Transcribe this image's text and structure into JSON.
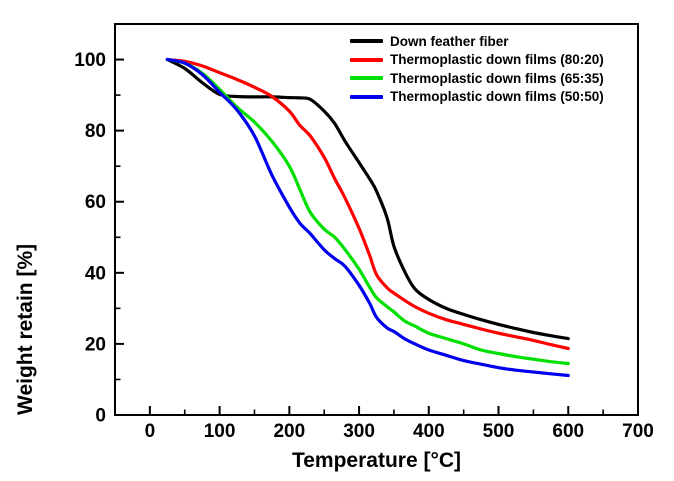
{
  "figure": {
    "background": "#ffffff",
    "frame_color": "#000000"
  },
  "chart_data": {
    "type": "line",
    "title": "",
    "xlabel": "Temperature [°C]",
    "ylabel": "Weight retain [%]",
    "xlim": [
      -50,
      700
    ],
    "ylim": [
      0,
      110
    ],
    "x_major_ticks": [
      0,
      100,
      200,
      300,
      400,
      500,
      600,
      700
    ],
    "x_minor_ticks": [
      50,
      150,
      250,
      350,
      450,
      550,
      650
    ],
    "y_major_ticks": [
      0,
      20,
      40,
      60,
      80,
      100
    ],
    "y_minor_ticks": [
      10,
      30,
      50,
      70,
      90
    ],
    "grid": false,
    "legend_position": "top-right-inside",
    "x": [
      25,
      50,
      75,
      100,
      125,
      150,
      175,
      200,
      215,
      230,
      250,
      265,
      280,
      300,
      315,
      325,
      340,
      350,
      365,
      380,
      400,
      425,
      450,
      475,
      500,
      525,
      550,
      575,
      600
    ],
    "series": [
      {
        "name": "Down feather fiber",
        "color": "#000000",
        "values": [
          100,
          97.5,
          93.5,
          90.2,
          89.6,
          89.5,
          89.5,
          89.3,
          89.2,
          88.8,
          85.5,
          82,
          77,
          71,
          66.5,
          63,
          55.5,
          47.5,
          40.5,
          35.5,
          32.5,
          30,
          28.3,
          26.8,
          25.5,
          24.3,
          23.2,
          22.3,
          21.5
        ]
      },
      {
        "name": "Thermoplastic down films (80:20)",
        "color": "#fe0000",
        "values": [
          100,
          99.5,
          98.2,
          96.3,
          94.4,
          92.2,
          89.6,
          85.5,
          81.5,
          78.5,
          72.5,
          66.5,
          61,
          52.5,
          45,
          39.5,
          35.8,
          34.3,
          32.3,
          30.5,
          28.6,
          26.8,
          25.5,
          24.2,
          23,
          22,
          21,
          19.8,
          18.7
        ]
      },
      {
        "name": "Thermoplastic down films (65:35)",
        "color": "#00df00",
        "values": [
          100,
          99,
          96.2,
          91.6,
          86.6,
          82.4,
          77,
          70,
          63.5,
          57,
          52.3,
          50,
          46.5,
          41,
          36,
          33,
          30.5,
          29,
          26.5,
          25,
          23,
          21.5,
          20,
          18.3,
          17.3,
          16.4,
          15.7,
          15,
          14.5
        ]
      },
      {
        "name": "Thermoplastic down films (50:50)",
        "color": "#0000ee",
        "values": [
          100,
          99,
          95.8,
          90.8,
          85.8,
          78.5,
          67.5,
          58.5,
          54,
          51,
          46.5,
          44,
          41.8,
          36.5,
          31.5,
          27.5,
          24.5,
          23.5,
          21.5,
          20,
          18.3,
          16.8,
          15.3,
          14.3,
          13.3,
          12.6,
          12.1,
          11.6,
          11.1
        ]
      }
    ]
  }
}
